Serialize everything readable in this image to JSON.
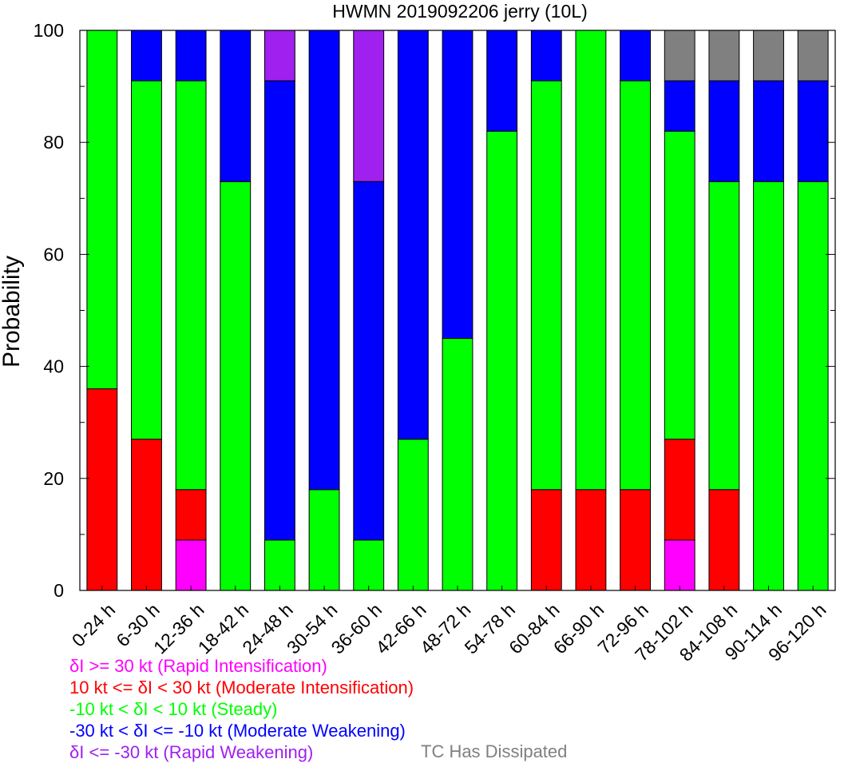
{
  "chart_data": {
    "type": "bar",
    "stacked": true,
    "title": "HWMN 2019092206 jerry (10L)",
    "xlabel": "",
    "ylabel": "Probability",
    "ylim": [
      0,
      100
    ],
    "yticks": [
      "0",
      "20",
      "40",
      "60",
      "80",
      "100"
    ],
    "grid": false,
    "categories": [
      "0-24 h",
      "6-30 h",
      "12-36 h",
      "18-42 h",
      "24-48 h",
      "30-54 h",
      "36-60 h",
      "42-66 h",
      "48-72 h",
      "54-78 h",
      "60-84 h",
      "66-90 h",
      "72-96 h",
      "78-102 h",
      "84-108 h",
      "90-114 h",
      "96-120 h"
    ],
    "series": [
      {
        "name": "δI >= 30 kt (Rapid Intensification)",
        "color": "#ff00ff",
        "values": [
          0,
          0,
          9,
          0,
          0,
          0,
          0,
          0,
          0,
          0,
          0,
          0,
          0,
          9,
          0,
          0,
          0
        ]
      },
      {
        "name": "10 kt <= δI < 30 kt (Moderate Intensification)",
        "color": "#ff0000",
        "values": [
          36,
          27,
          9,
          0,
          0,
          0,
          0,
          0,
          0,
          0,
          18,
          18,
          18,
          18,
          18,
          0,
          0
        ]
      },
      {
        "name": "-10 kt < δI < 10 kt (Steady)",
        "color": "#00ff00",
        "values": [
          64,
          64,
          73,
          73,
          9,
          18,
          9,
          27,
          45,
          82,
          73,
          82,
          73,
          55,
          55,
          73,
          73
        ]
      },
      {
        "name": "-30 kt < δI <= -10 kt (Moderate Weakening)",
        "color": "#0000ff",
        "values": [
          0,
          9,
          9,
          27,
          82,
          82,
          64,
          73,
          55,
          18,
          9,
          0,
          9,
          9,
          18,
          18,
          18
        ]
      },
      {
        "name": "δI <= -30 kt (Rapid Weakening)",
        "color": "#a020f0",
        "values": [
          0,
          0,
          0,
          0,
          9,
          0,
          27,
          0,
          0,
          0,
          0,
          0,
          0,
          0,
          0,
          0,
          0
        ]
      },
      {
        "name": "TC Has Dissipated",
        "color": "#808080",
        "values": [
          0,
          0,
          0,
          0,
          0,
          0,
          0,
          0,
          0,
          0,
          0,
          0,
          0,
          9,
          9,
          9,
          9
        ]
      }
    ]
  }
}
